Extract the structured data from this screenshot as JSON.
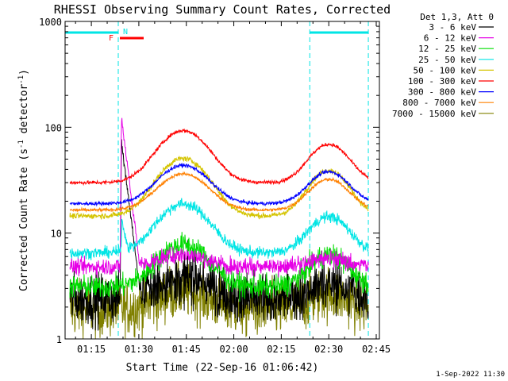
{
  "chart_data": {
    "type": "line",
    "title": "RHESSI Observing Summary Count Rates, Corrected",
    "xlabel": "Start Time (22-Sep-16 01:06:42)",
    "ylabel_main": "Corrected Count Rate (s",
    "ylabel_exp1": "-1",
    "ylabel_mid": " detector",
    "ylabel_exp2": "-1",
    "ylabel_end": ")",
    "yscale": "log",
    "ylim": [
      1,
      1000
    ],
    "xlim": [
      "01:06:42",
      "02:46:00"
    ],
    "x_ticks": [
      "01:15",
      "01:30",
      "01:45",
      "02:00",
      "02:15",
      "02:30",
      "02:45"
    ],
    "y_ticks": [
      "1",
      "10",
      "100",
      "1000"
    ],
    "legend_header": "Det 1,3, Att 0",
    "legend_placement": "right",
    "footer_date": "1-Sep-2022 11:30",
    "attenuator_marks": [
      {
        "label": "F",
        "color": "#ff0000"
      },
      {
        "label": "N",
        "color": "#00e5e5"
      }
    ],
    "night_intervals": [
      [
        "01:06:42",
        "01:23:30"
      ],
      [
        "02:24:00",
        "02:42:30"
      ]
    ],
    "series": [
      {
        "name": "3 - 6 keV",
        "color": "#000000",
        "baseline": 2.4,
        "peak1": 1.6,
        "peak2": 1.4,
        "noise": 0.55
      },
      {
        "name": "6 - 12 keV",
        "color": "#e600e6",
        "baseline": 4.8,
        "peak1": 1.3,
        "peak2": 1.2,
        "noise": 0.18
      },
      {
        "name": "12 - 25 keV",
        "color": "#00dd00",
        "baseline": 3.1,
        "peak1": 2.5,
        "peak2": 2.0,
        "noise": 0.25
      },
      {
        "name": "25 - 50 keV",
        "color": "#00e5e5",
        "baseline": 6.5,
        "peak1": 2.9,
        "peak2": 2.2,
        "noise": 0.12
      },
      {
        "name": "50 - 100 keV",
        "color": "#d4c400",
        "baseline": 14.5,
        "peak1": 3.5,
        "peak2": 2.7,
        "noise": 0.06
      },
      {
        "name": "100 - 300 keV",
        "color": "#ff0000",
        "baseline": 30,
        "peak1": 3.1,
        "peak2": 2.3,
        "noise": 0.04
      },
      {
        "name": "300 - 800 keV",
        "color": "#0000ff",
        "baseline": 19,
        "peak1": 2.3,
        "peak2": 2.0,
        "noise": 0.04
      },
      {
        "name": "800 - 7000 keV",
        "color": "#ff8000",
        "baseline": 16.5,
        "peak1": 2.2,
        "peak2": 1.95,
        "noise": 0.035
      },
      {
        "name": "7000 - 15000 keV",
        "color": "#808000",
        "baseline": 1.9,
        "peak1": 1.5,
        "peak2": 1.4,
        "noise": 0.6
      }
    ],
    "spike": {
      "time": "01:24:30",
      "peak": 125
    }
  }
}
